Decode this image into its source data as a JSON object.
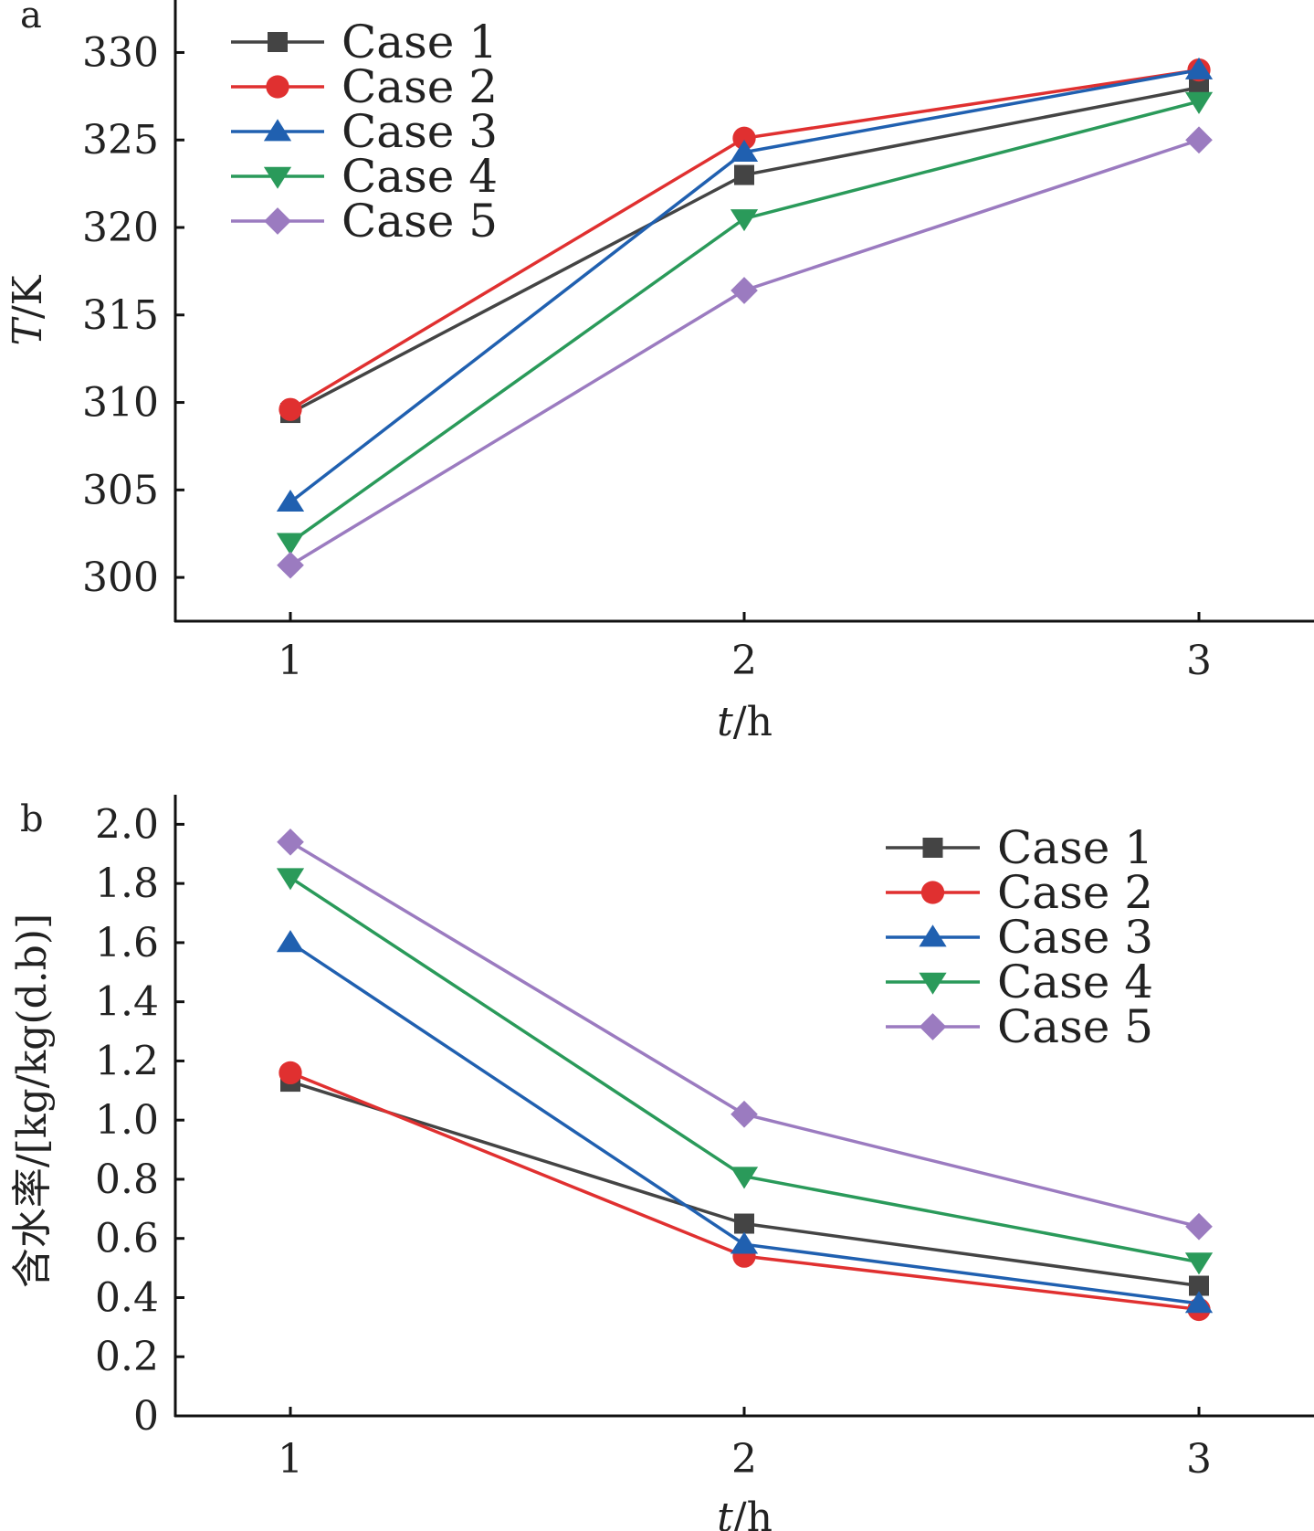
{
  "chart_data": [
    {
      "type": "line",
      "panel_label": "a",
      "x": [
        1,
        2,
        3
      ],
      "xticks": [
        "1",
        "2",
        "3"
      ],
      "xlabel_italic": "t",
      "xlabel_rest": "/h",
      "ylabel_italic": "T",
      "ylabel_rest": "/K",
      "ylim": [
        297.5,
        333
      ],
      "yticks": [
        300,
        305,
        310,
        315,
        320,
        325,
        330
      ],
      "legend_position": "top-left",
      "series": [
        {
          "name": "Case 1",
          "color": "#444444",
          "marker": "square",
          "values": [
            309.4,
            323.0,
            328.0
          ]
        },
        {
          "name": "Case 2",
          "color": "#e03030",
          "marker": "circle",
          "values": [
            309.6,
            325.1,
            329.0
          ]
        },
        {
          "name": "Case 3",
          "color": "#2060b0",
          "marker": "triangle-up",
          "values": [
            304.3,
            324.3,
            329.0
          ]
        },
        {
          "name": "Case 4",
          "color": "#2a9a5a",
          "marker": "triangle-down",
          "values": [
            302.0,
            320.5,
            327.2
          ]
        },
        {
          "name": "Case 5",
          "color": "#9b7bc0",
          "marker": "diamond",
          "values": [
            300.7,
            316.4,
            325.0
          ]
        }
      ]
    },
    {
      "type": "line",
      "panel_label": "b",
      "x": [
        1,
        2,
        3
      ],
      "xticks": [
        "1",
        "2",
        "3"
      ],
      "xlabel_italic": "t",
      "xlabel_rest": "/h",
      "ylabel_italic": "",
      "ylabel_rest": "含水率/[kg/kg(d.b)]",
      "ylim": [
        0,
        2.1
      ],
      "yticks": [
        0,
        0.2,
        0.4,
        0.6,
        0.8,
        1.0,
        1.2,
        1.4,
        1.6,
        1.8,
        2.0
      ],
      "ytick_labels": [
        "0",
        "0.2",
        "0.4",
        "0.6",
        "0.8",
        "1.0",
        "1.2",
        "1.4",
        "1.6",
        "1.8",
        "2.0"
      ],
      "legend_position": "top-right",
      "series": [
        {
          "name": "Case 1",
          "color": "#444444",
          "marker": "square",
          "values": [
            1.13,
            0.65,
            0.44
          ]
        },
        {
          "name": "Case 2",
          "color": "#e03030",
          "marker": "circle",
          "values": [
            1.16,
            0.54,
            0.36
          ]
        },
        {
          "name": "Case 3",
          "color": "#2060b0",
          "marker": "triangle-up",
          "values": [
            1.6,
            0.58,
            0.38
          ]
        },
        {
          "name": "Case 4",
          "color": "#2a9a5a",
          "marker": "triangle-down",
          "values": [
            1.82,
            0.81,
            0.52
          ]
        },
        {
          "name": "Case 5",
          "color": "#9b7bc0",
          "marker": "diamond",
          "values": [
            1.94,
            1.02,
            0.64
          ]
        }
      ]
    }
  ]
}
